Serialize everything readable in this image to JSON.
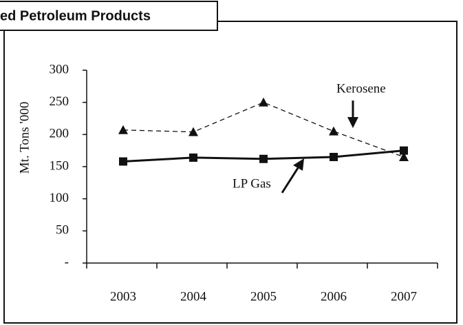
{
  "chart_data": {
    "type": "line",
    "title": "ed Petroleum Products",
    "ylabel": "Mt. Tons '000",
    "categories": [
      "2003",
      "2004",
      "2005",
      "2006",
      "2007"
    ],
    "series": [
      {
        "name": "Kerosene",
        "color": "#111111",
        "marker": "triangle",
        "dashed": true,
        "values": [
          207,
          204,
          250,
          205,
          165
        ]
      },
      {
        "name": "LP Gas",
        "color": "#111111",
        "marker": "square",
        "dashed": false,
        "values": [
          158,
          164,
          162,
          165,
          175
        ]
      }
    ],
    "ylim": [
      0,
      300
    ],
    "yticks": [
      {
        "value": 0,
        "label": "-"
      },
      50,
      100,
      150,
      200,
      250,
      300
    ],
    "grid": false
  }
}
